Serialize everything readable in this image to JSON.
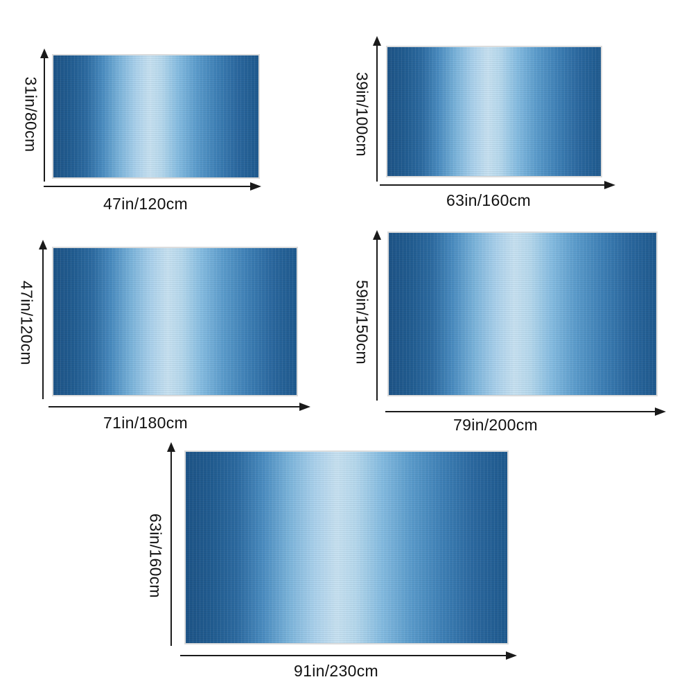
{
  "rugs": [
    {
      "height_label": "31in/80cm",
      "width_label": "47in/120cm"
    },
    {
      "height_label": "39in/100cm",
      "width_label": "63in/160cm"
    },
    {
      "height_label": "47in/120cm",
      "width_label": "71in/180cm"
    },
    {
      "height_label": "59in/150cm",
      "width_label": "79in/200cm"
    },
    {
      "height_label": "63in/160cm",
      "width_label": "91in/230cm"
    }
  ],
  "colors": {
    "rug_dark_blue": "#1e5487",
    "rug_light_blue": "#c6e0f0",
    "arrow": "#1a1a1a",
    "background": "#ffffff"
  }
}
